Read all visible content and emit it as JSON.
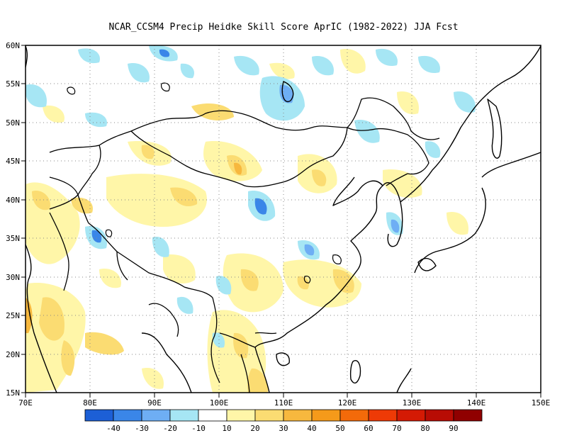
{
  "title": "NCAR_CCSM4 Precip Heidke Skill Score AprIC (1982-2022) JJA Fcst",
  "map": {
    "lon_range": [
      70,
      150
    ],
    "lat_range": [
      15,
      60
    ],
    "lon_ticks": [
      "70E",
      "80E",
      "90E",
      "100E",
      "110E",
      "120E",
      "130E",
      "140E",
      "150E"
    ],
    "lat_ticks": [
      "15N",
      "20N",
      "25N",
      "30N",
      "35N",
      "40N",
      "45N",
      "50N",
      "55N",
      "60N"
    ],
    "grid": "dotted"
  },
  "colorbar": {
    "colors": [
      "#1c5fd6",
      "#3a86e8",
      "#6eaef4",
      "#a6e6f4",
      "#ffffff",
      "#fff6a8",
      "#fbdc72",
      "#f7b83e",
      "#f59a1a",
      "#f36a0a",
      "#ee3a06",
      "#d41a04",
      "#b80c04",
      "#900000"
    ],
    "labels": [
      "-40",
      "-30",
      "-20",
      "-10",
      "10",
      "20",
      "30",
      "40",
      "50",
      "60",
      "70",
      "80",
      "90"
    ]
  },
  "icons": [
    "coastline-outline",
    "country-border"
  ]
}
